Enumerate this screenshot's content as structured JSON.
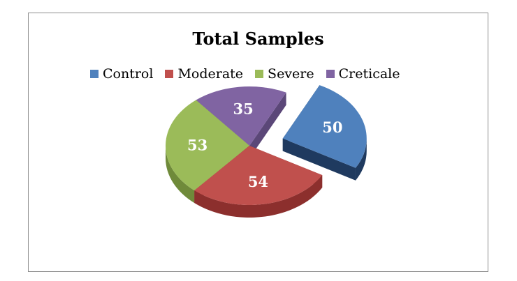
{
  "chart_data": {
    "type": "pie",
    "title": "Total Samples",
    "categories": [
      "Control",
      "Moderate",
      "Severe",
      "Creticale"
    ],
    "values": [
      50,
      54,
      53,
      35
    ],
    "colors": [
      "#4f81bd",
      "#c0504d",
      "#9bbb59",
      "#8064a2"
    ],
    "side_colors": [
      "#1f3a5f",
      "#8c2f2d",
      "#6f8a3a",
      "#5b4778"
    ],
    "data_labels": [
      "50",
      "54",
      "53",
      "35"
    ],
    "exploded": [
      true,
      false,
      false,
      false
    ],
    "style": "3d-exploded",
    "legend_position": "top"
  }
}
